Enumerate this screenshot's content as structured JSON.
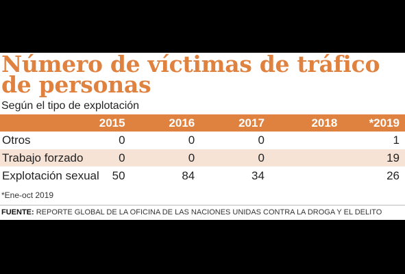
{
  "chart_data": {
    "type": "table",
    "title": "Número de víctimas de tráfico de personas",
    "subtitle": "Según el tipo de explotación",
    "columns": [
      "2015",
      "2016",
      "2017",
      "2018",
      "*2019"
    ],
    "rows": [
      {
        "label": "Otros",
        "values": [
          "0",
          "0",
          "0",
          "",
          "1"
        ]
      },
      {
        "label": "Trabajo forzado",
        "values": [
          "0",
          "0",
          "0",
          "",
          "19"
        ]
      },
      {
        "label": "Explotación sexual",
        "values": [
          "50",
          "84",
          "34",
          "",
          "26"
        ]
      }
    ],
    "footnote": "*Ene-oct 2019",
    "source_label": "FUENTE:",
    "source_text": "REPORTE GLOBAL DE LA OFICINA DE LAS NACIONES UNIDAS CONTRA LA DROGA Y EL DELITO"
  },
  "colors": {
    "accent": "#e0823f",
    "row_shade": "#f6e3d6",
    "background": "#000000",
    "panel": "#ffffff"
  }
}
